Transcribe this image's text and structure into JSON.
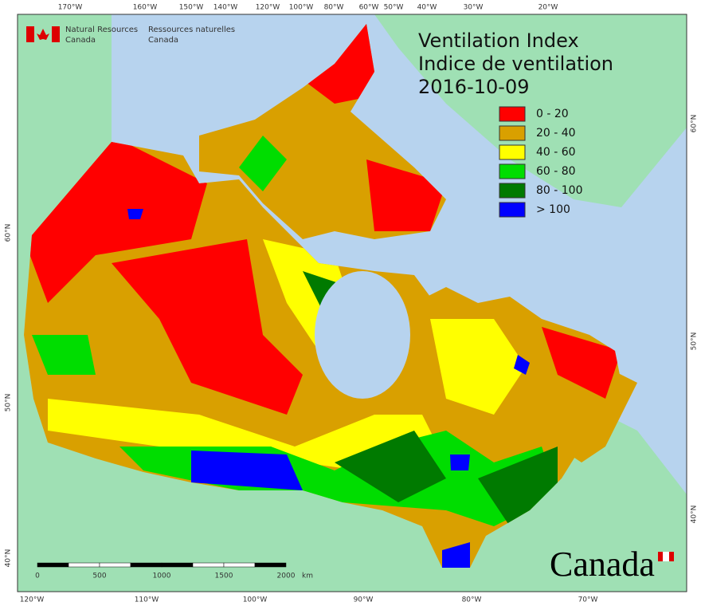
{
  "map": {
    "title": "Ventilation Index",
    "title_fr": "Indice de ventilation",
    "date": "2016-10-09",
    "agency": {
      "en_1": "Natural Resources",
      "en_2": "Canada",
      "fr_1": "Ressources naturelles",
      "fr_2": "Canada"
    },
    "wordmark": "Canada",
    "legend": [
      {
        "label": "0 - 20",
        "color": "#ff0000"
      },
      {
        "label": "20 - 40",
        "color": "#d9a000"
      },
      {
        "label": "40 - 60",
        "color": "#ffff00"
      },
      {
        "label": "60 - 80",
        "color": "#00dd00"
      },
      {
        "label": "80 - 100",
        "color": "#007a00"
      },
      {
        "label": "> 100",
        "color": "#0000ff"
      }
    ],
    "graticule": {
      "top": [
        "170°W",
        "160°W",
        "150°W",
        "140°W",
        "120°W",
        "100°W",
        "80°W",
        "60°W",
        "50°W",
        "40°W",
        "30°W",
        "20°W"
      ],
      "bottom": [
        "120°W",
        "110°W",
        "100°W",
        "90°W",
        "80°W",
        "70°W"
      ],
      "left": [
        "60°N",
        "50°N",
        "40°N"
      ],
      "right": [
        "60°N",
        "50°N",
        "40°N"
      ]
    },
    "scale": {
      "labels": [
        "0",
        "500",
        "1000",
        "1500",
        "2000"
      ],
      "unit": "km"
    }
  }
}
